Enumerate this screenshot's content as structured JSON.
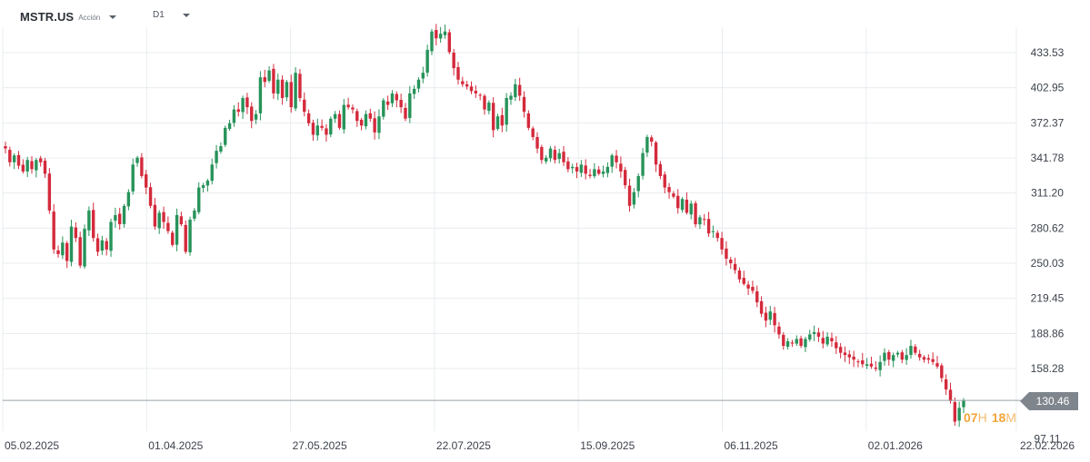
{
  "header": {
    "symbol": "MSTR.US",
    "asset_type": "Acción",
    "timeframe": "D1"
  },
  "price_tag": {
    "value": "130.46",
    "countdown": {
      "h": "07",
      "h_unit": "H",
      "m": "18",
      "m_unit": "M"
    }
  },
  "colors": {
    "bull": "#27935a",
    "bear": "#d42a3c",
    "grid": "#e9ecef",
    "price_line": "#9aa0a8",
    "price_tag_bg": "#7f858d",
    "countdown": "#f2a53a"
  },
  "chart_data": {
    "type": "candlestick",
    "timeframe": "D1",
    "y_ticks": [
      "433.53",
      "402.95",
      "372.37",
      "341.78",
      "311.20",
      "280.62",
      "250.03",
      "219.45",
      "188.86",
      "158.28",
      "97.11"
    ],
    "x_ticks": [
      "05.02.2025",
      "01.04.2025",
      "27.05.2025",
      "22.07.2025",
      "15.09.2025",
      "06.11.2025",
      "02.01.2026",
      "22.02.2026"
    ],
    "last_price": 130.46,
    "grid": true,
    "closes": [
      350,
      338,
      344,
      335,
      330,
      340,
      332,
      340,
      338,
      328,
      296,
      262,
      258,
      268,
      252,
      282,
      272,
      248,
      280,
      296,
      272,
      260,
      270,
      262,
      286,
      292,
      284,
      300,
      312,
      336,
      342,
      326,
      316,
      300,
      282,
      294,
      286,
      278,
      266,
      292,
      284,
      260,
      288,
      296,
      316,
      318,
      322,
      336,
      348,
      352,
      368,
      372,
      384,
      382,
      394,
      386,
      374,
      380,
      412,
      408,
      418,
      398,
      410,
      394,
      408,
      386,
      416,
      394,
      382,
      372,
      362,
      370,
      368,
      362,
      376,
      380,
      368,
      388,
      386,
      384,
      374,
      370,
      380,
      376,
      364,
      378,
      392,
      388,
      398,
      392,
      386,
      376,
      398,
      402,
      410,
      416,
      436,
      452,
      446,
      450,
      452,
      434,
      420,
      410,
      406,
      404,
      400,
      398,
      396,
      384,
      390,
      366,
      378,
      370,
      394,
      396,
      406,
      396,
      382,
      368,
      360,
      350,
      340,
      342,
      350,
      340,
      346,
      338,
      332,
      334,
      330,
      336,
      328,
      326,
      332,
      328,
      330,
      334,
      344,
      338,
      330,
      318,
      300,
      312,
      326,
      346,
      360,
      356,
      336,
      326,
      316,
      312,
      308,
      298,
      306,
      294,
      302,
      284,
      290,
      288,
      276,
      278,
      272,
      262,
      254,
      250,
      244,
      236,
      232,
      228,
      226,
      216,
      206,
      200,
      208,
      196,
      188,
      178,
      182,
      180,
      184,
      178,
      184,
      188,
      190,
      186,
      180,
      186,
      182,
      176,
      172,
      170,
      168,
      166,
      164,
      162,
      162,
      160,
      158,
      164,
      172,
      166,
      170,
      172,
      166,
      170,
      178,
      172,
      168,
      166,
      166,
      164,
      160,
      150,
      140,
      130,
      112,
      124,
      130.46
    ]
  }
}
